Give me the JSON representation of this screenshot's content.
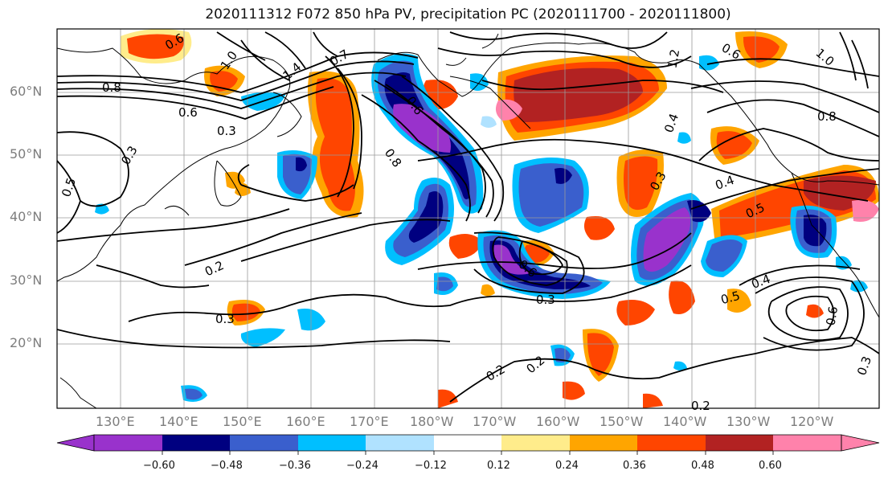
{
  "title": "2020111312 F072 850 hPa PV, precipitation PC (2020111700 - 2020111800)",
  "lat_labels": [
    "60°N",
    "50°N",
    "40°N",
    "30°N",
    "20°N"
  ],
  "lon_labels": [
    "130°E",
    "140°E",
    "150°E",
    "160°E",
    "170°E",
    "180°W",
    "170°W",
    "160°W",
    "150°W",
    "140°W",
    "130°W",
    "120°W"
  ],
  "contour_labels": [
    "0.8",
    "0.6",
    "1.0",
    "1.4",
    "0.7",
    "0.6",
    "0.3",
    "0.5",
    "0.3",
    "0.2",
    "0.3",
    "0.8",
    "0.6",
    "0.3",
    "0.2",
    "0.2",
    "0.4",
    "0.4",
    "0.5",
    "0.5",
    "0.6",
    "0.3",
    "0.3",
    "0.4",
    "0.8",
    "0.6",
    "0.6",
    "1.0",
    "1.2",
    "0.2"
  ],
  "colorbar": {
    "colors": [
      "#9932CC",
      "#000080",
      "#3A5FCD",
      "#00BFFF",
      "#B0E2FF",
      "#FFFFFF",
      "#FFEC8B",
      "#FFA500",
      "#FF4500",
      "#B22222",
      "#FF82AB"
    ],
    "tick_labels": [
      "−0.60",
      "−0.48",
      "−0.36",
      "−0.24",
      "−0.12",
      "0.12",
      "0.24",
      "0.36",
      "0.48",
      "0.60"
    ]
  }
}
